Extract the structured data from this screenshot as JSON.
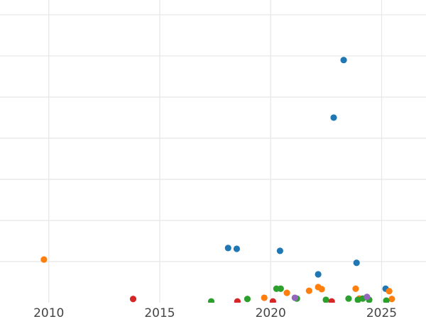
{
  "chart_data": {
    "type": "scatter",
    "title": "",
    "xlabel": "",
    "ylabel": "",
    "xlim": [
      2007.8,
      2027.0
    ],
    "ylim": [
      0,
      7.36
    ],
    "grid": true,
    "x_ticks": [
      2010,
      2015,
      2020,
      2025
    ],
    "x_tick_labels": [
      "2010",
      "2015",
      "2020",
      "2025"
    ],
    "y_gridlines": [
      1,
      2,
      3,
      4,
      5,
      6,
      7
    ],
    "series": [
      {
        "color": "#1f77b4",
        "points": [
          [
            2023.29,
            5.9
          ],
          [
            2022.84,
            4.5
          ],
          [
            2018.08,
            1.33
          ],
          [
            2018.47,
            1.31
          ],
          [
            2020.42,
            1.26
          ],
          [
            2022.14,
            0.69
          ],
          [
            2023.87,
            0.97
          ],
          [
            2025.18,
            0.34
          ]
        ]
      },
      {
        "color": "#ff7f0e",
        "points": [
          [
            2009.78,
            1.05
          ],
          [
            2019.71,
            0.12
          ],
          [
            2020.73,
            0.24
          ],
          [
            2021.73,
            0.29
          ],
          [
            2022.14,
            0.38
          ],
          [
            2022.3,
            0.33
          ],
          [
            2023.83,
            0.34
          ],
          [
            2025.34,
            0.28
          ],
          [
            2025.46,
            0.09
          ],
          [
            2023.99,
            0.1
          ]
        ]
      },
      {
        "color": "#2ca02c",
        "points": [
          [
            2017.32,
            0.03
          ],
          [
            2018.95,
            0.09
          ],
          [
            2020.26,
            0.34
          ],
          [
            2020.45,
            0.34
          ],
          [
            2021.18,
            0.1
          ],
          [
            2022.49,
            0.07
          ],
          [
            2023.51,
            0.1
          ],
          [
            2023.93,
            0.07
          ],
          [
            2024.15,
            0.1
          ],
          [
            2024.44,
            0.07
          ],
          [
            2025.21,
            0.05
          ]
        ]
      },
      {
        "color": "#d62728",
        "points": [
          [
            2013.8,
            0.09
          ],
          [
            2018.5,
            0.03
          ],
          [
            2020.1,
            0.03
          ],
          [
            2022.75,
            0.03
          ]
        ]
      },
      {
        "color": "#9467bd",
        "points": [
          [
            2021.09,
            0.12
          ],
          [
            2024.34,
            0.14
          ]
        ]
      }
    ]
  }
}
